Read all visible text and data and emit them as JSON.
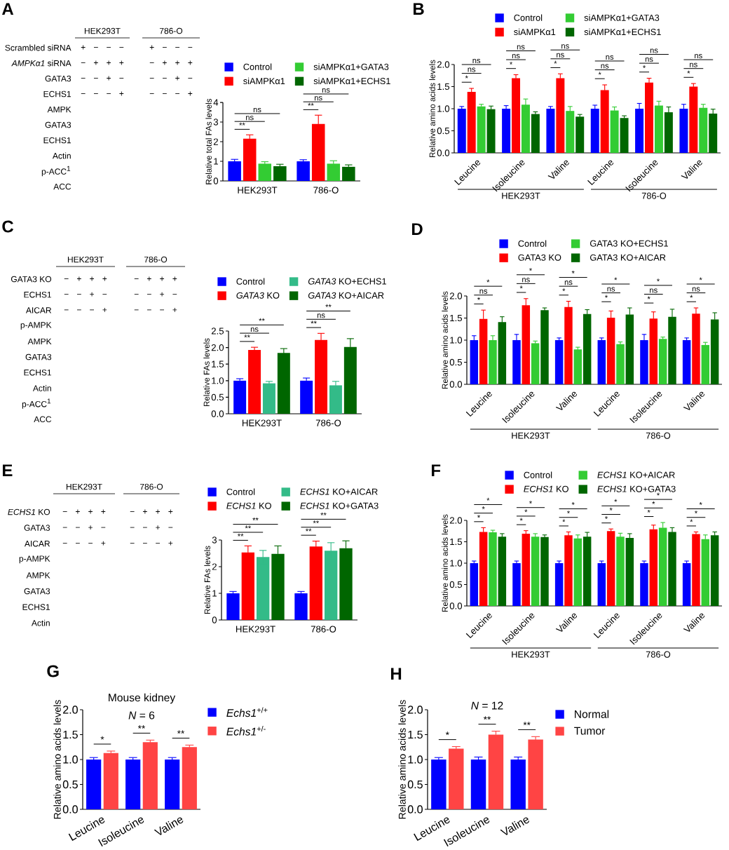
{
  "chart_data": [
    {
      "type": "other",
      "annotations": [
        "A"
      ],
      "categories": [
        "HEK293T",
        "786-O"
      ],
      "y_categories": [
        "Scrambled siRNA",
        "*AMPKα1* siRNA",
        "GATA3",
        "ECHS1",
        "AMPK",
        "GATA3",
        "ECHS1",
        "Actin",
        "p-ACC$^{1}$",
        "ACC"
      ],
      "cell_labels": [
        [
          "+ − − −",
          "+ − − −"
        ],
        [
          "− + + +",
          "− + + +"
        ],
        [
          "− − + −",
          "− − + −"
        ],
        [
          "− − − +",
          "− − − +"
        ],
        [
          null,
          null
        ],
        [
          null,
          null
        ],
        [
          null,
          null
        ],
        [
          null,
          null
        ],
        [
          null,
          null
        ],
        [
          null,
          null
        ]
      ]
    },
    {
      "type": "bar",
      "ylabel": "Relative total FAs levels",
      "categories": [
        "HEK293T",
        "786-O"
      ],
      "series": [
        {
          "name": "Control",
          "color": "#0000ff",
          "values": [
            1.0,
            1.0
          ],
          "errors": [
            0.1,
            0.08
          ]
        },
        {
          "name": "siAMPKα1",
          "color": "#ff0000",
          "values": [
            2.15,
            2.9
          ],
          "errors": [
            0.2,
            0.45
          ]
        },
        {
          "name": "siAMPKα1+GATA3",
          "color": "#33cc33",
          "values": [
            0.88,
            0.88
          ],
          "errors": [
            0.1,
            0.15
          ]
        },
        {
          "name": "siAMPKα1+ECHS1",
          "color": "#006600",
          "values": [
            0.75,
            0.72
          ],
          "errors": [
            0.1,
            0.1
          ]
        }
      ],
      "ylim": [
        0,
        4
      ],
      "yticks": [
        0,
        1,
        2,
        3,
        4
      ],
      "legend": "top",
      "annotations": [
        "**",
        "ns",
        "ns",
        "**",
        "ns",
        "ns"
      ]
    },
    {
      "type": "bar",
      "ylabel": "Relative amino acids levels",
      "categories": [
        "Leucine",
        "Isoleucine",
        "Valine",
        "Leucine",
        "Isoleucine",
        "Valine"
      ],
      "series": [
        {
          "name": "Control",
          "color": "#0000ff",
          "values": [
            1.0,
            1.0,
            1.0,
            1.0,
            1.0,
            1.0
          ],
          "errors": [
            0.05,
            0.07,
            0.05,
            0.08,
            0.12,
            0.1
          ]
        },
        {
          "name": "siAMPKα1",
          "color": "#ff0000",
          "values": [
            1.38,
            1.69,
            1.69,
            1.42,
            1.59,
            1.5
          ],
          "errors": [
            0.08,
            0.08,
            0.1,
            0.12,
            0.1,
            0.07
          ]
        },
        {
          "name": "siAMPKα1+GATA3",
          "color": "#33cc33",
          "values": [
            1.05,
            1.09,
            0.95,
            0.96,
            1.07,
            1.02
          ],
          "errors": [
            0.05,
            0.13,
            0.1,
            0.08,
            0.1,
            0.08
          ]
        },
        {
          "name": "siAMPKα1+ECHS1",
          "color": "#006600",
          "values": [
            0.99,
            0.88,
            0.82,
            0.79,
            0.92,
            0.89
          ],
          "errors": [
            0.07,
            0.05,
            0.05,
            0.05,
            0.12,
            0.1
          ]
        }
      ],
      "ylim": [
        0,
        2
      ],
      "yticks": [
        {
          "value": 0,
          "label": "0.0"
        },
        0.5,
        {
          "value": 1,
          "label": "1.0"
        },
        1.5,
        {
          "value": 2,
          "label": "2.0"
        }
      ],
      "legend": "top",
      "annotations": [
        "B",
        "HEK293T",
        "786-O",
        "*",
        "ns",
        "ns",
        "*",
        "ns",
        "ns",
        "*",
        "ns",
        "ns",
        "*",
        "ns",
        "ns",
        "*",
        "ns",
        "ns",
        "*",
        "ns",
        "ns"
      ]
    },
    {
      "type": "other",
      "annotations": [
        "C"
      ],
      "categories": [
        "HEK293T",
        "786-O"
      ],
      "y_categories": [
        "GATA3 KO",
        "ECHS1",
        "AICAR",
        "p-AMPK",
        "AMPK",
        "GATA3",
        "ECHS1",
        "Actin",
        "p-ACC$^{1}$",
        "ACC"
      ],
      "cell_labels": [
        [
          "− + + +",
          "− + + +"
        ],
        [
          "− − + −",
          "− − + −"
        ],
        [
          "− − − +",
          "− − − +"
        ],
        [
          null,
          null
        ],
        [
          null,
          null
        ],
        [
          null,
          null
        ],
        [
          null,
          null
        ],
        [
          null,
          null
        ],
        [
          null,
          null
        ],
        [
          null,
          null
        ]
      ]
    },
    {
      "type": "bar",
      "ylabel": "Relative FAs levels",
      "categories": [
        "HEK293T",
        "786-O"
      ],
      "series": [
        {
          "name": "Control",
          "color": "#0000ff",
          "values": [
            1.0,
            1.0
          ],
          "errors": [
            0.06,
            0.08
          ]
        },
        {
          "name": "*GATA3* KO",
          "color": "#ff0000",
          "values": [
            1.93,
            2.23
          ],
          "errors": [
            0.08,
            0.2
          ]
        },
        {
          "name": "*GATA3* KO+ECHS1",
          "color": "#33bb88",
          "values": [
            0.92,
            0.86
          ],
          "errors": [
            0.06,
            0.12
          ]
        },
        {
          "name": "*GATA3* KO+AICAR",
          "color": "#006600",
          "values": [
            1.84,
            2.02
          ],
          "errors": [
            0.13,
            0.25
          ]
        }
      ],
      "ylim": [
        0,
        2.5
      ],
      "yticks": [
        {
          "value": 0,
          "label": "0.0"
        },
        0.5,
        {
          "value": 1,
          "label": "1.0"
        },
        1.5,
        {
          "value": 2,
          "label": "2.0"
        },
        2.5
      ],
      "legend": "top",
      "annotations": [
        "**",
        "ns",
        "**",
        "**",
        "ns",
        "**"
      ]
    },
    {
      "type": "bar",
      "ylabel": "Relative amino acids levels",
      "categories": [
        "Leucine",
        "Isoleucine",
        "Valine",
        "Leucine",
        "Isoleucine",
        "Valine"
      ],
      "series": [
        {
          "name": "Control",
          "color": "#0000ff",
          "values": [
            1.0,
            1.0,
            1.0,
            1.0,
            1.0,
            1.0
          ],
          "errors": [
            0.1,
            0.13,
            0.05,
            0.05,
            0.13,
            0.05
          ]
        },
        {
          "name": "GATA3 KO",
          "color": "#ff0000",
          "values": [
            1.48,
            1.79,
            1.75,
            1.51,
            1.49,
            1.6
          ],
          "errors": [
            0.2,
            0.15,
            0.13,
            0.15,
            0.15,
            0.13
          ]
        },
        {
          "name": "GATA3 KO+ECHS1",
          "color": "#33cc33",
          "values": [
            1.0,
            0.93,
            0.79,
            0.91,
            1.03,
            0.89
          ],
          "errors": [
            0.1,
            0.05,
            0.05,
            0.05,
            0.04,
            0.06
          ]
        },
        {
          "name": "GATA3 KO+AICAR",
          "color": "#006600",
          "values": [
            1.41,
            1.68,
            1.59,
            1.58,
            1.53,
            1.47
          ],
          "errors": [
            0.12,
            0.05,
            0.1,
            0.15,
            0.17,
            0.15
          ]
        }
      ],
      "ylim": [
        0,
        2
      ],
      "yticks": [
        {
          "value": 0,
          "label": "0.0"
        },
        0.5,
        {
          "value": 1,
          "label": "1.0"
        },
        1.5,
        {
          "value": 2,
          "label": "2.0"
        }
      ],
      "legend": "top",
      "annotations": [
        "D",
        "HEK293T",
        "786-O",
        "*",
        "ns",
        "*",
        "*",
        "ns",
        "*",
        "*",
        "ns",
        "*",
        "*",
        "ns",
        "*",
        "*",
        "ns",
        "*",
        "*",
        "ns",
        "*"
      ]
    },
    {
      "type": "other",
      "annotations": [
        "E"
      ],
      "categories": [
        "HEK293T",
        "786-O"
      ],
      "y_categories": [
        "*ECHS1* KO",
        "GATA3",
        "AICAR",
        "p-AMPK",
        "AMPK",
        "GATA3",
        "ECHS1",
        "Actin"
      ],
      "cell_labels": [
        [
          "− + + +",
          "− + + +"
        ],
        [
          "− − + −",
          "− − + −"
        ],
        [
          "− − − +",
          "− − − +"
        ],
        [
          null,
          null
        ],
        [
          null,
          null
        ],
        [
          null,
          null
        ],
        [
          null,
          null
        ],
        [
          null,
          null
        ]
      ]
    },
    {
      "type": "bar",
      "ylabel": "Relative FAs levels",
      "categories": [
        "HEK293T",
        "786-O"
      ],
      "series": [
        {
          "name": "Control",
          "color": "#0000ff",
          "values": [
            1.0,
            1.0
          ],
          "errors": [
            0.07,
            0.07
          ]
        },
        {
          "name": "*ECHS1* KO",
          "color": "#ff0000",
          "values": [
            2.53,
            2.76
          ],
          "errors": [
            0.25,
            0.2
          ]
        },
        {
          "name": "*ECHS1* KO+AICAR",
          "color": "#33bb88",
          "values": [
            2.36,
            2.6
          ],
          "errors": [
            0.25,
            0.3
          ]
        },
        {
          "name": "*ECHS1* KO+GATA3",
          "color": "#006600",
          "values": [
            2.48,
            2.69
          ],
          "errors": [
            0.3,
            0.28
          ]
        }
      ],
      "ylim": [
        0,
        3
      ],
      "yticks": [
        0,
        1,
        2,
        3
      ],
      "legend": "top",
      "annotations": [
        "**",
        "**",
        "**",
        "**",
        "**",
        "**"
      ]
    },
    {
      "type": "bar",
      "ylabel": "Relative amino acids levels",
      "categories": [
        "Leucine",
        "Isoleucine",
        "Valine",
        "Leucine",
        "Isoleucine",
        "Valine"
      ],
      "series": [
        {
          "name": "Control",
          "color": "#0000ff",
          "values": [
            1.0,
            1.0,
            1.0,
            1.0,
            1.0,
            1.0
          ],
          "errors": [
            0.05,
            0.05,
            0.05,
            0.05,
            0.05,
            0.05
          ]
        },
        {
          "name": "*ECHS1* KO",
          "color": "#ff0000",
          "values": [
            1.73,
            1.69,
            1.65,
            1.75,
            1.79,
            1.68
          ],
          "errors": [
            0.1,
            0.07,
            0.08,
            0.05,
            0.1,
            0.05
          ]
        },
        {
          "name": "*ECHS1* KO+AICAR",
          "color": "#33cc33",
          "values": [
            1.72,
            1.62,
            1.58,
            1.62,
            1.83,
            1.56
          ],
          "errors": [
            0.05,
            0.07,
            0.08,
            0.08,
            0.12,
            0.1
          ]
        },
        {
          "name": "*ECHS1* KO+GATA3",
          "color": "#006600",
          "values": [
            1.62,
            1.61,
            1.62,
            1.59,
            1.73,
            1.65
          ],
          "errors": [
            0.07,
            0.05,
            0.1,
            0.1,
            0.1,
            0.08
          ]
        }
      ],
      "ylim": [
        0,
        2
      ],
      "yticks": [
        {
          "value": 0,
          "label": "0.0"
        },
        0.5,
        {
          "value": 1,
          "label": "1.0"
        },
        1.5,
        {
          "value": 2,
          "label": "2.0"
        }
      ],
      "legend": "top",
      "annotations": [
        "F",
        "HEK293T",
        "786-O",
        "*",
        "*",
        "*",
        "*",
        "*",
        "*",
        "*",
        "*",
        "*",
        "*",
        "*",
        "*",
        "*",
        "*",
        "*",
        "*",
        "*",
        "*"
      ]
    },
    {
      "type": "bar",
      "title": "Mouse kidney",
      "subtitle": "*N* = 6",
      "ylabel": "Relative amino acids levels",
      "categories": [
        "Leucine",
        "Isoleucine",
        "Valine"
      ],
      "series": [
        {
          "name": "*Echs1*$^{+/+}$",
          "color": "#0000ff",
          "values": [
            1.0,
            1.0,
            1.0
          ],
          "errors": [
            0.04,
            0.04,
            0.04
          ]
        },
        {
          "name": "*Echs1*$^{+/-}$",
          "color": "#ff4444",
          "values": [
            1.13,
            1.35,
            1.25
          ],
          "errors": [
            0.04,
            0.04,
            0.04
          ]
        }
      ],
      "ylim": [
        0,
        2
      ],
      "yticks": [
        {
          "value": 0,
          "label": "0.0"
        },
        0.5,
        {
          "value": 1,
          "label": "1.0"
        },
        1.5,
        {
          "value": 2,
          "label": "2.0"
        }
      ],
      "legend": "right",
      "annotations": [
        "G",
        "*",
        "**",
        "**"
      ]
    },
    {
      "type": "bar",
      "title": "*N* = 12",
      "ylabel": "Relative amino acids levels",
      "categories": [
        "Leucine",
        "Isoleucine",
        "Valine"
      ],
      "series": [
        {
          "name": "Normal",
          "color": "#0000ff",
          "values": [
            1.0,
            1.0,
            1.0
          ],
          "errors": [
            0.04,
            0.05,
            0.05
          ]
        },
        {
          "name": "Tumor",
          "color": "#ff4444",
          "values": [
            1.22,
            1.5,
            1.4
          ],
          "errors": [
            0.04,
            0.07,
            0.06
          ]
        }
      ],
      "ylim": [
        0,
        2
      ],
      "yticks": [
        {
          "value": 0,
          "label": "0.0"
        },
        0.5,
        {
          "value": 1,
          "label": "1.0"
        },
        1.5,
        {
          "value": 2,
          "label": "2.0"
        }
      ],
      "legend": "right",
      "annotations": [
        "H",
        "*",
        "**",
        "**"
      ]
    }
  ]
}
